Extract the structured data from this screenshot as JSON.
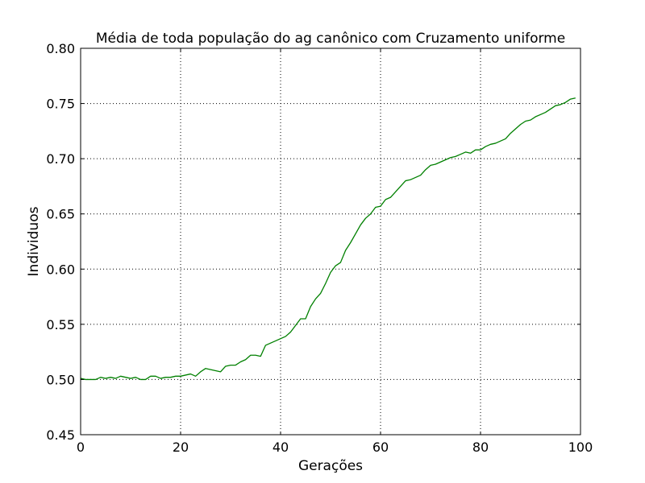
{
  "chart_data": {
    "type": "line",
    "title": "Média de toda população do ag canônico com Cruzamento uniforme",
    "xlabel": "Gerações",
    "ylabel": "Individuos",
    "xlim": [
      0,
      100
    ],
    "ylim": [
      0.45,
      0.8
    ],
    "xticks": [
      0,
      20,
      40,
      60,
      80,
      100
    ],
    "xtick_labels": [
      "0",
      "20",
      "40",
      "60",
      "80",
      "100"
    ],
    "yticks": [
      0.45,
      0.5,
      0.55,
      0.6,
      0.65,
      0.7,
      0.75,
      0.8
    ],
    "ytick_labels": [
      "0.45",
      "0.50",
      "0.55",
      "0.60",
      "0.65",
      "0.70",
      "0.75",
      "0.80"
    ],
    "grid": true,
    "line_color": "#008000",
    "series": [
      {
        "x": [
          0,
          1,
          2,
          3,
          4,
          5,
          6,
          7,
          8,
          9,
          10,
          11,
          12,
          13,
          14,
          15,
          16,
          17,
          18,
          19,
          20,
          21,
          22,
          23,
          24,
          25,
          26,
          27,
          28,
          29,
          30,
          31,
          32,
          33,
          34,
          35,
          36,
          37,
          38,
          39,
          40,
          41,
          42,
          43,
          44,
          45,
          46,
          47,
          48,
          49,
          50,
          51,
          52,
          53,
          54,
          55,
          56,
          57,
          58,
          59,
          60,
          61,
          62,
          63,
          64,
          65,
          66,
          67,
          68,
          69,
          70,
          71,
          72,
          73,
          74,
          75,
          76,
          77,
          78,
          79,
          80,
          81,
          82,
          83,
          84,
          85,
          86,
          87,
          88,
          89,
          90,
          91,
          92,
          93,
          94,
          95,
          96,
          97,
          98,
          99
        ],
        "y": [
          0.501,
          0.5,
          0.5,
          0.5,
          0.502,
          0.501,
          0.502,
          0.501,
          0.503,
          0.502,
          0.501,
          0.502,
          0.5,
          0.5,
          0.503,
          0.503,
          0.501,
          0.502,
          0.502,
          0.503,
          0.503,
          0.504,
          0.505,
          0.503,
          0.507,
          0.51,
          0.509,
          0.508,
          0.507,
          0.512,
          0.513,
          0.513,
          0.516,
          0.518,
          0.522,
          0.522,
          0.521,
          0.531,
          0.533,
          0.535,
          0.537,
          0.539,
          0.543,
          0.549,
          0.555,
          0.555,
          0.566,
          0.573,
          0.578,
          0.587,
          0.597,
          0.603,
          0.606,
          0.617,
          0.624,
          0.632,
          0.64,
          0.646,
          0.65,
          0.656,
          0.657,
          0.663,
          0.665,
          0.67,
          0.675,
          0.68,
          0.681,
          0.683,
          0.685,
          0.69,
          0.694,
          0.695,
          0.697,
          0.699,
          0.701,
          0.702,
          0.704,
          0.706,
          0.705,
          0.708,
          0.708,
          0.711,
          0.713,
          0.714,
          0.716,
          0.718,
          0.723,
          0.727,
          0.731,
          0.734,
          0.735,
          0.738,
          0.74,
          0.742,
          0.745,
          0.748,
          0.749,
          0.751,
          0.754,
          0.755
        ]
      }
    ]
  }
}
